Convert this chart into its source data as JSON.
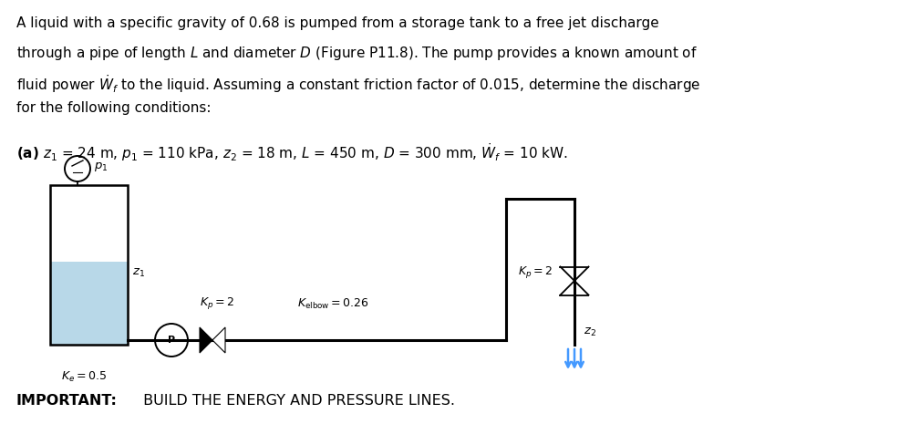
{
  "background_color": "#ffffff",
  "fig_width": 9.98,
  "fig_height": 4.65,
  "dpi": 100,
  "text_lines": [
    "A liquid with a specific gravity of 0.68 is pumped from a storage tank to a free jet discharge",
    "through a pipe of length $L$ and diameter $D$ (Figure P11.8). The pump provides a known amount of",
    "fluid power $\\dot{W}_f$ to the liquid. Assuming a constant friction factor of 0.015, determine the discharge",
    "for the following conditions:"
  ],
  "param_line": "$\\mathbf{(a)}$ $z_1$ = 24 m, $p_1$ = 110 kPa, $z_2$ = 18 m, $L$ = 450 m, $D$ = 300 mm, $\\dot{W}_f$ = 10 kW.",
  "liquid_color": "#b8d8e8",
  "pipe_linewidth": 2.2,
  "tank_linewidth": 1.8
}
